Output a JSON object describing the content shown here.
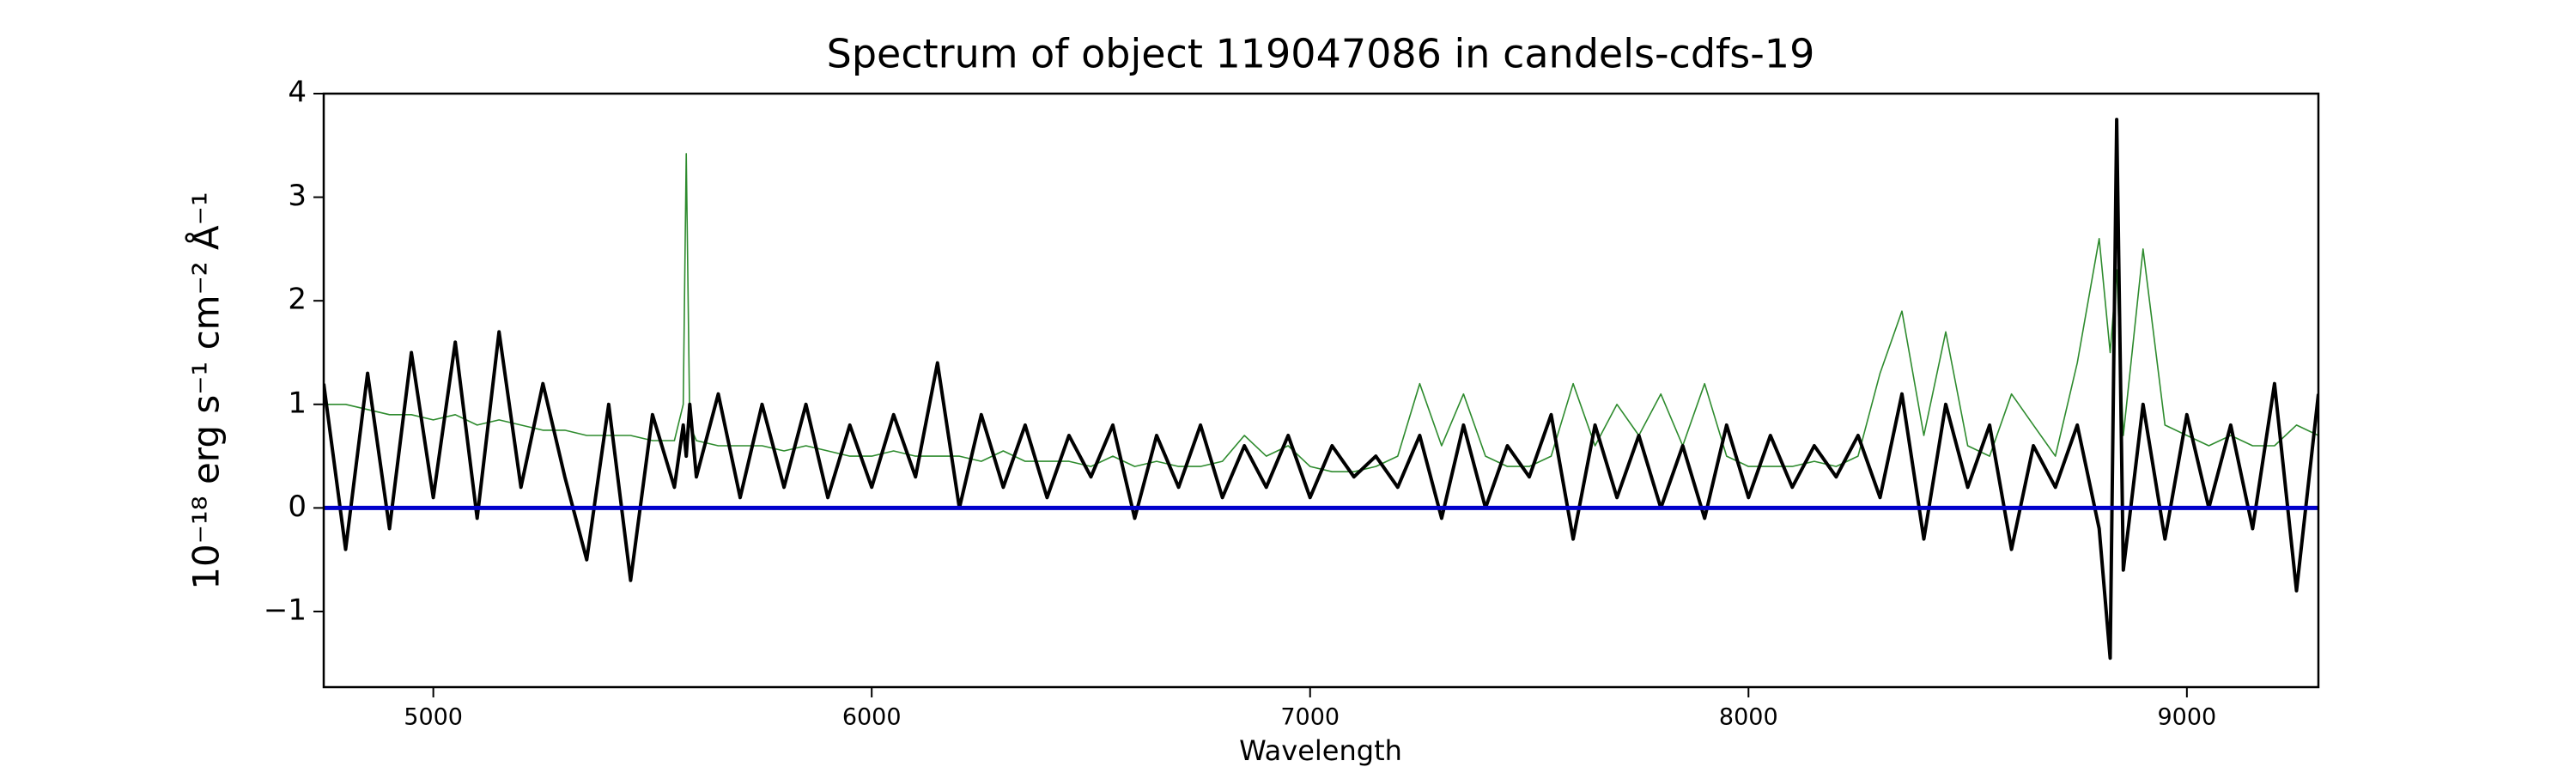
{
  "chart_data": {
    "type": "line",
    "title": "Spectrum of object 119047086 in candels-cdfs-19",
    "x_label": "Wavelength",
    "y_label": "10⁻¹⁸ erg s⁻¹ cm⁻² Å⁻¹",
    "x": [
      4750,
      4800,
      4850,
      4900,
      4950,
      5000,
      5050,
      5100,
      5150,
      5200,
      5250,
      5300,
      5350,
      5400,
      5450,
      5500,
      5550,
      5570,
      5577,
      5585,
      5600,
      5650,
      5700,
      5750,
      5800,
      5850,
      5900,
      5950,
      6000,
      6050,
      6100,
      6150,
      6200,
      6250,
      6300,
      6350,
      6400,
      6450,
      6500,
      6550,
      6600,
      6650,
      6700,
      6750,
      6800,
      6850,
      6900,
      6950,
      7000,
      7050,
      7100,
      7150,
      7200,
      7250,
      7300,
      7350,
      7400,
      7450,
      7500,
      7550,
      7600,
      7650,
      7700,
      7750,
      7800,
      7850,
      7900,
      7950,
      8000,
      8050,
      8100,
      8150,
      8200,
      8250,
      8300,
      8350,
      8400,
      8450,
      8500,
      8550,
      8600,
      8650,
      8700,
      8750,
      8800,
      8825,
      8840,
      8855,
      8900,
      8950,
      9000,
      9050,
      9100,
      9150,
      9200,
      9250,
      9300
    ],
    "series": [
      {
        "color": "#000000",
        "width": 4,
        "values": [
          1.2,
          -0.4,
          1.3,
          -0.2,
          1.5,
          0.1,
          1.6,
          -0.1,
          1.7,
          0.2,
          1.2,
          0.3,
          -0.5,
          1.0,
          -0.7,
          0.9,
          0.2,
          0.8,
          0.5,
          1.0,
          0.3,
          1.1,
          0.1,
          1.0,
          0.2,
          1.0,
          0.1,
          0.8,
          0.2,
          0.9,
          0.3,
          1.4,
          0.0,
          0.9,
          0.2,
          0.8,
          0.1,
          0.7,
          0.3,
          0.8,
          -0.1,
          0.7,
          0.2,
          0.8,
          0.1,
          0.6,
          0.2,
          0.7,
          0.1,
          0.6,
          0.3,
          0.5,
          0.2,
          0.7,
          -0.1,
          0.8,
          0.0,
          0.6,
          0.3,
          0.9,
          -0.3,
          0.8,
          0.1,
          0.7,
          0.0,
          0.6,
          -0.1,
          0.8,
          0.1,
          0.7,
          0.2,
          0.6,
          0.3,
          0.7,
          0.1,
          1.1,
          -0.3,
          1.0,
          0.2,
          0.8,
          -0.4,
          0.6,
          0.2,
          0.8,
          -0.2,
          -1.45,
          3.75,
          -0.6,
          1.0,
          -0.3,
          0.9,
          0.0,
          0.8,
          -0.2,
          1.2,
          -0.8,
          1.1
        ]
      },
      {
        "color": "#2e8b2e",
        "width": 1.6,
        "values": [
          1.0,
          1.0,
          0.95,
          0.9,
          0.9,
          0.85,
          0.9,
          0.8,
          0.85,
          0.8,
          0.75,
          0.75,
          0.7,
          0.7,
          0.7,
          0.65,
          0.65,
          1.0,
          3.42,
          0.8,
          0.65,
          0.6,
          0.6,
          0.6,
          0.55,
          0.6,
          0.55,
          0.5,
          0.5,
          0.55,
          0.5,
          0.5,
          0.5,
          0.45,
          0.55,
          0.45,
          0.45,
          0.45,
          0.4,
          0.5,
          0.4,
          0.45,
          0.4,
          0.4,
          0.45,
          0.7,
          0.5,
          0.6,
          0.4,
          0.35,
          0.35,
          0.4,
          0.5,
          1.2,
          0.6,
          1.1,
          0.5,
          0.4,
          0.4,
          0.5,
          1.2,
          0.6,
          1.0,
          0.7,
          1.1,
          0.6,
          1.2,
          0.5,
          0.4,
          0.4,
          0.4,
          0.45,
          0.4,
          0.5,
          1.3,
          1.9,
          0.7,
          1.7,
          0.6,
          0.5,
          1.1,
          0.8,
          0.5,
          1.4,
          2.6,
          1.5,
          2.3,
          0.7,
          2.5,
          0.8,
          0.7,
          0.6,
          0.7,
          0.6,
          0.6,
          0.8,
          0.7
        ]
      }
    ],
    "reference_line": {
      "value": 0,
      "color": "#0000cc"
    },
    "xlim": [
      4750,
      9300
    ],
    "ylim": [
      -1.73,
      4.0
    ],
    "xticks": [
      5000,
      6000,
      7000,
      8000,
      9000
    ],
    "yticks": [
      {
        "value": -1,
        "label": "−1"
      },
      0,
      1,
      2,
      3,
      4
    ]
  }
}
